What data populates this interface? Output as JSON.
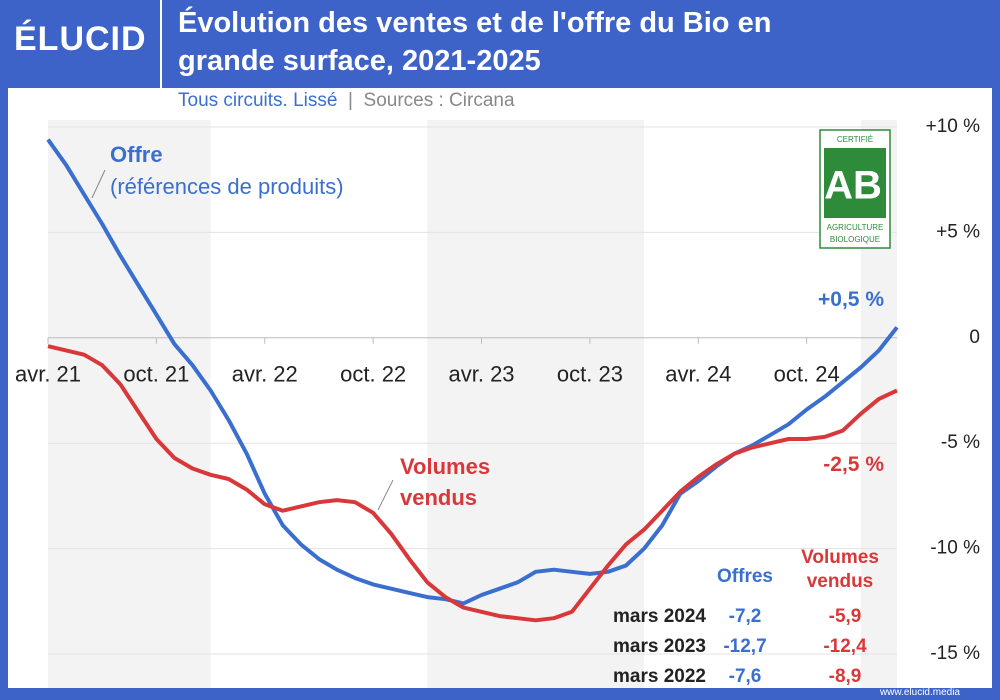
{
  "chart_data": {
    "type": "line",
    "brand": "ÉLUCID",
    "title": "Évolution des ventes et de l'offre du Bio en grande surface, 2021-2025",
    "subtitle": "Tous circuits. Lissé",
    "source": "Sources : Circana",
    "footer": "www.elucid.media",
    "logo": {
      "top": "CERTIFIÉ",
      "mark": "AB",
      "bottom1": "AGRICULTURE",
      "bottom2": "BIOLOGIQUE"
    },
    "x": [
      0,
      1,
      2,
      3,
      4,
      5,
      6,
      7,
      8,
      9,
      10,
      11,
      12,
      13,
      14,
      15,
      16,
      17,
      18,
      19,
      20,
      21,
      22,
      23,
      24,
      25,
      26,
      27,
      28,
      29,
      30,
      31,
      32,
      33,
      34,
      35,
      36,
      37,
      38,
      39,
      40,
      41,
      42,
      43,
      44,
      45,
      46,
      47
    ],
    "xlim": [
      0,
      47
    ],
    "xticks": [
      {
        "value": 0,
        "label": "avr. 21"
      },
      {
        "value": 6,
        "label": "oct. 21"
      },
      {
        "value": 12,
        "label": "avr. 22"
      },
      {
        "value": 18,
        "label": "oct. 22"
      },
      {
        "value": 24,
        "label": "avr. 23"
      },
      {
        "value": 30,
        "label": "oct. 23"
      },
      {
        "value": 36,
        "label": "avr. 24"
      },
      {
        "value": 42,
        "label": "oct. 24"
      }
    ],
    "shaded_spans": [
      [
        0,
        9
      ],
      [
        21,
        33
      ],
      [
        45,
        47
      ]
    ],
    "ylim": [
      -15,
      10
    ],
    "yticks": [
      {
        "value": 10,
        "label": "+10 %"
      },
      {
        "value": 5,
        "label": "+5 %"
      },
      0,
      {
        "value": -5,
        "label": "-5 %"
      },
      {
        "value": -10,
        "label": "-10 %"
      },
      {
        "value": -15,
        "label": "-15 %"
      }
    ],
    "grid": true,
    "series": [
      {
        "name": "Offre",
        "note": "(références de produits)",
        "color": "#3a6fd0",
        "values": [
          9.4,
          8.2,
          6.8,
          5.4,
          3.9,
          2.5,
          1.1,
          -0.3,
          -1.3,
          -2.5,
          -3.9,
          -5.5,
          -7.4,
          -8.9,
          -9.8,
          -10.5,
          -11.0,
          -11.4,
          -11.7,
          -11.9,
          -12.1,
          -12.3,
          -12.4,
          -12.6,
          -12.2,
          -11.9,
          -11.6,
          -11.1,
          -11.0,
          -11.1,
          -11.2,
          -11.1,
          -10.8,
          -10.0,
          -8.9,
          -7.4,
          -6.8,
          -6.1,
          -5.5,
          -5.1,
          -4.6,
          -4.1,
          -3.4,
          -2.8,
          -2.1,
          -1.4,
          -0.6,
          0.5
        ],
        "value_labels": [
          null,
          null,
          null,
          null,
          null,
          null,
          null,
          null,
          null,
          null,
          null,
          null,
          null,
          null,
          null,
          null,
          null,
          null,
          null,
          null,
          null,
          null,
          null,
          null,
          null,
          null,
          null,
          null,
          null,
          null,
          null,
          null,
          null,
          null,
          null,
          null,
          null,
          null,
          null,
          null,
          null,
          null,
          null,
          null,
          null,
          null,
          null,
          "+0,5 %"
        ]
      },
      {
        "name": "Volumes vendus",
        "color": "#d9383a",
        "values": [
          -0.4,
          -0.6,
          -0.8,
          -1.3,
          -2.2,
          -3.5,
          -4.8,
          -5.7,
          -6.2,
          -6.5,
          -6.7,
          -7.2,
          -7.9,
          -8.2,
          -8.0,
          -7.8,
          -7.7,
          -7.8,
          -8.3,
          -9.3,
          -10.5,
          -11.6,
          -12.3,
          -12.8,
          -13.0,
          -13.2,
          -13.3,
          -13.4,
          -13.3,
          -13.0,
          -11.9,
          -10.8,
          -9.8,
          -9.1,
          -8.2,
          -7.3,
          -6.6,
          -6.0,
          -5.5,
          -5.2,
          -5.0,
          -4.8,
          -4.8,
          -4.7,
          -4.4,
          -3.6,
          -2.9,
          -2.5
        ],
        "value_labels": [
          null,
          null,
          null,
          null,
          null,
          null,
          null,
          null,
          null,
          null,
          null,
          null,
          null,
          null,
          null,
          null,
          null,
          null,
          null,
          null,
          null,
          null,
          null,
          null,
          null,
          null,
          null,
          null,
          null,
          null,
          null,
          null,
          null,
          null,
          null,
          null,
          null,
          null,
          null,
          null,
          null,
          null,
          null,
          null,
          null,
          null,
          null,
          "-2,5 %"
        ]
      }
    ],
    "table": {
      "columns": [
        "Offres",
        "Volumes vendus"
      ],
      "rows": [
        {
          "label": "mars 2024",
          "values": [
            "-7,2",
            "-5,9"
          ]
        },
        {
          "label": "mars 2023",
          "values": [
            "-12,7",
            "-12,4"
          ]
        },
        {
          "label": "mars 2022",
          "values": [
            "-7,6",
            "-8,9"
          ]
        }
      ]
    }
  }
}
